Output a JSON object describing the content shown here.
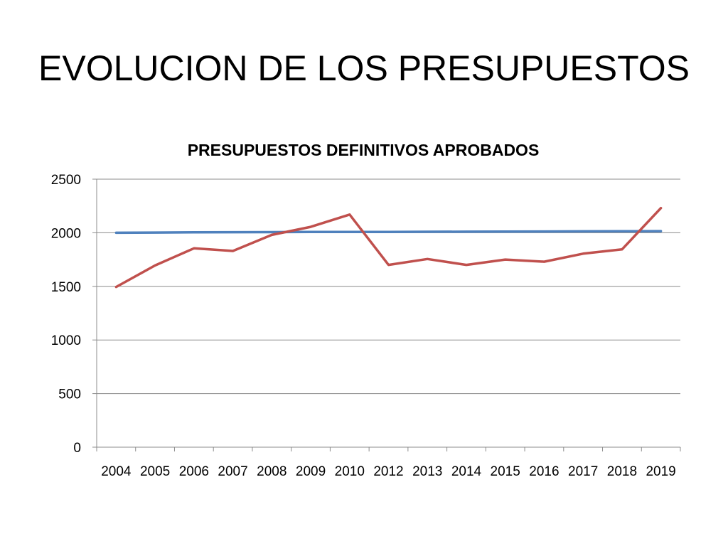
{
  "slide": {
    "title": "EVOLUCION DE LOS PRESUPUESTOS"
  },
  "chart_data": {
    "type": "line",
    "title": "PRESUPUESTOS DEFINITIVOS APROBADOS",
    "xlabel": "",
    "ylabel": "",
    "categories": [
      "2004",
      "2005",
      "2006",
      "2007",
      "2008",
      "2009",
      "2010",
      "2012",
      "2013",
      "2014",
      "2015",
      "2016",
      "2017",
      "2018",
      "2019"
    ],
    "ylim": [
      0,
      2500
    ],
    "yticks": [
      0,
      500,
      1000,
      1500,
      2000,
      2500
    ],
    "grid": true,
    "legend": "none",
    "series": [
      {
        "color": "#4F81BD",
        "values": [
          2000,
          2002,
          2004,
          2005,
          2006,
          2007,
          2008,
          2008,
          2009,
          2010,
          2011,
          2012,
          2013,
          2014,
          2015
        ]
      },
      {
        "color": "#C0504D",
        "values": [
          1495,
          1695,
          1855,
          1830,
          1980,
          2055,
          2170,
          1700,
          1755,
          1700,
          1750,
          1730,
          1805,
          1845,
          2230
        ]
      }
    ]
  }
}
